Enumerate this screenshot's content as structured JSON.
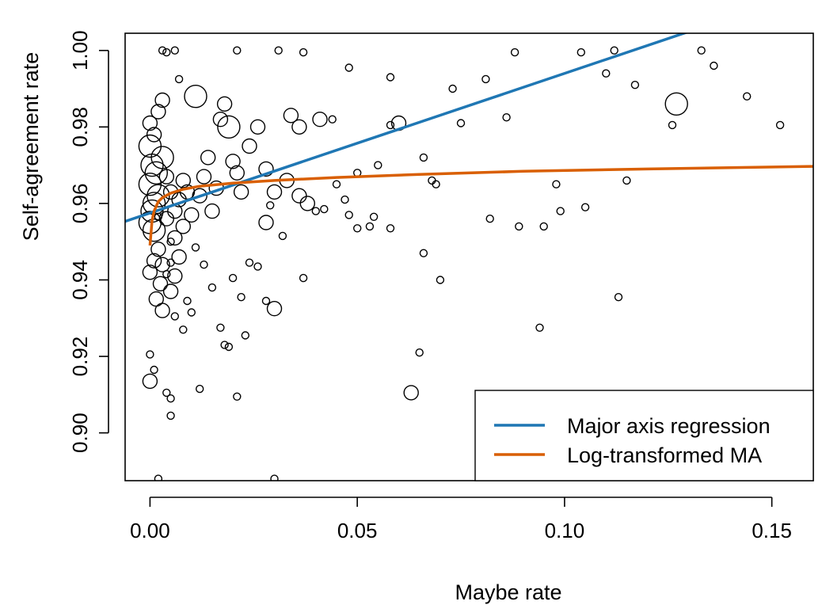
{
  "chart_data": {
    "type": "scatter",
    "title": "",
    "xlabel": "Maybe rate",
    "ylabel": "Self-agreement rate",
    "xlim": [
      -0.006,
      0.16
    ],
    "ylim": [
      0.8875,
      1.0045
    ],
    "x_ticks": [
      0.0,
      0.05,
      0.1,
      0.15
    ],
    "x_tick_labels": [
      "0.00",
      "0.05",
      "0.10",
      "0.15"
    ],
    "y_ticks": [
      0.9,
      0.92,
      0.94,
      0.96,
      0.98,
      1.0
    ],
    "y_tick_labels": [
      "0.90",
      "0.92",
      "0.94",
      "0.96",
      "0.98",
      "1.00"
    ],
    "grid": false,
    "legend_position": "bottom-right",
    "colors": {
      "major_axis": "#1f77b4",
      "log_ma": "#d95f02",
      "points": "#000000"
    },
    "lines": [
      {
        "name": "Major axis regression",
        "kind": "linear",
        "intercept": 0.9575,
        "slope": 0.365
      },
      {
        "name": "Log-transformed MA",
        "kind": "log",
        "points": [
          [
            0.0,
            0.949
          ],
          [
            0.0005,
            0.9555
          ],
          [
            0.001,
            0.958
          ],
          [
            0.002,
            0.9605
          ],
          [
            0.003,
            0.9615
          ],
          [
            0.005,
            0.9627
          ],
          [
            0.008,
            0.9637
          ],
          [
            0.012,
            0.9645
          ],
          [
            0.02,
            0.9653
          ],
          [
            0.03,
            0.966
          ],
          [
            0.045,
            0.9668
          ],
          [
            0.065,
            0.9676
          ],
          [
            0.09,
            0.9684
          ],
          [
            0.12,
            0.969
          ],
          [
            0.16,
            0.9697
          ]
        ]
      }
    ],
    "points_note_format": "[x, y, size]",
    "points": [
      [
        0.0,
        0.975,
        3
      ],
      [
        0.0005,
        0.97,
        3
      ],
      [
        0.0,
        0.965,
        3
      ],
      [
        0.001,
        0.96,
        3
      ],
      [
        0.0005,
        0.958,
        3
      ],
      [
        0.0,
        0.955,
        3
      ],
      [
        0.001,
        0.953,
        3
      ],
      [
        0.002,
        0.962,
        3
      ],
      [
        0.0015,
        0.968,
        3
      ],
      [
        0.003,
        0.972,
        3
      ],
      [
        0.0,
        0.981,
        2
      ],
      [
        0.001,
        0.978,
        2
      ],
      [
        0.002,
        0.984,
        2
      ],
      [
        0.003,
        0.987,
        2
      ],
      [
        0.004,
        0.956,
        2
      ],
      [
        0.005,
        0.963,
        2
      ],
      [
        0.006,
        0.958,
        2
      ],
      [
        0.004,
        0.967,
        2
      ],
      [
        0.007,
        0.961,
        2
      ],
      [
        0.008,
        0.966,
        2
      ],
      [
        0.0,
        0.9135,
        2
      ],
      [
        0.0,
        0.942,
        2
      ],
      [
        0.001,
        0.945,
        2
      ],
      [
        0.002,
        0.948,
        2
      ],
      [
        0.003,
        0.944,
        2
      ],
      [
        0.0025,
        0.939,
        2
      ],
      [
        0.0015,
        0.935,
        2
      ],
      [
        0.003,
        0.932,
        2
      ],
      [
        0.005,
        0.937,
        2
      ],
      [
        0.006,
        0.941,
        2
      ],
      [
        0.007,
        0.946,
        2
      ],
      [
        0.006,
        0.951,
        2
      ],
      [
        0.008,
        0.954,
        2
      ],
      [
        0.009,
        0.963,
        2
      ],
      [
        0.01,
        0.957,
        2
      ],
      [
        0.011,
        0.988,
        3
      ],
      [
        0.012,
        0.962,
        2
      ],
      [
        0.013,
        0.967,
        2
      ],
      [
        0.014,
        0.972,
        2
      ],
      [
        0.015,
        0.958,
        2
      ],
      [
        0.016,
        0.964,
        2
      ],
      [
        0.017,
        0.982,
        2
      ],
      [
        0.018,
        0.986,
        2
      ],
      [
        0.019,
        0.98,
        3
      ],
      [
        0.02,
        0.971,
        2
      ],
      [
        0.021,
        0.968,
        2
      ],
      [
        0.022,
        0.963,
        2
      ],
      [
        0.024,
        0.975,
        2
      ],
      [
        0.026,
        0.98,
        2
      ],
      [
        0.028,
        0.969,
        2
      ],
      [
        0.03,
        0.963,
        2
      ],
      [
        0.03,
        0.9325,
        2
      ],
      [
        0.028,
        0.955,
        2
      ],
      [
        0.033,
        0.966,
        2
      ],
      [
        0.036,
        0.962,
        2
      ],
      [
        0.038,
        0.96,
        2
      ],
      [
        0.034,
        0.983,
        2
      ],
      [
        0.036,
        0.98,
        2
      ],
      [
        0.041,
        0.982,
        2
      ],
      [
        0.044,
        0.982,
        1
      ],
      [
        0.045,
        0.965,
        1
      ],
      [
        0.047,
        0.961,
        1
      ],
      [
        0.05,
        0.968,
        1
      ],
      [
        0.053,
        0.954,
        1
      ],
      [
        0.055,
        0.97,
        1
      ],
      [
        0.058,
        0.9805,
        1
      ],
      [
        0.06,
        0.981,
        2
      ],
      [
        0.066,
        0.972,
        1
      ],
      [
        0.068,
        0.966,
        1
      ],
      [
        0.069,
        0.965,
        1
      ],
      [
        0.063,
        0.9105,
        2
      ],
      [
        0.07,
        0.94,
        1
      ],
      [
        0.073,
        0.99,
        1
      ],
      [
        0.075,
        0.981,
        1
      ],
      [
        0.082,
        0.956,
        1
      ],
      [
        0.089,
        0.954,
        1
      ],
      [
        0.095,
        0.954,
        1
      ],
      [
        0.099,
        0.958,
        1
      ],
      [
        0.105,
        0.959,
        1
      ],
      [
        0.11,
        0.994,
        1
      ],
      [
        0.115,
        0.966,
        1
      ],
      [
        0.117,
        0.991,
        1
      ],
      [
        0.127,
        0.986,
        3
      ],
      [
        0.136,
        0.996,
        1
      ],
      [
        0.144,
        0.988,
        1
      ],
      [
        0.094,
        0.9275,
        1
      ],
      [
        0.113,
        0.9355,
        1
      ],
      [
        0.065,
        0.921,
        1
      ],
      [
        0.066,
        0.947,
        1
      ],
      [
        0.002,
        0.888,
        1
      ],
      [
        0.03,
        0.888,
        1
      ],
      [
        0.0,
        0.9205,
        1
      ],
      [
        0.001,
        0.9165,
        1
      ],
      [
        0.004,
        0.9105,
        1
      ],
      [
        0.005,
        0.909,
        1
      ],
      [
        0.005,
        0.9045,
        1
      ],
      [
        0.012,
        0.9115,
        1
      ],
      [
        0.019,
        0.9225,
        1
      ],
      [
        0.018,
        0.923,
        1
      ],
      [
        0.017,
        0.9275,
        1
      ],
      [
        0.023,
        0.9255,
        1
      ],
      [
        0.021,
        0.9095,
        1
      ],
      [
        0.028,
        0.9345,
        1
      ],
      [
        0.029,
        0.9595,
        1
      ],
      [
        0.032,
        0.9515,
        1
      ],
      [
        0.037,
        0.9405,
        1
      ],
      [
        0.04,
        0.958,
        1
      ],
      [
        0.042,
        0.9585,
        1
      ],
      [
        0.048,
        0.957,
        1
      ],
      [
        0.05,
        0.9535,
        1
      ],
      [
        0.054,
        0.9565,
        1
      ],
      [
        0.058,
        0.9535,
        1
      ],
      [
        0.026,
        0.9435,
        1
      ],
      [
        0.024,
        0.9445,
        1
      ],
      [
        0.02,
        0.9405,
        1
      ],
      [
        0.022,
        0.9355,
        1
      ],
      [
        0.015,
        0.938,
        1
      ],
      [
        0.013,
        0.944,
        1
      ],
      [
        0.011,
        0.9485,
        1
      ],
      [
        0.009,
        0.9345,
        1
      ],
      [
        0.01,
        0.9315,
        1
      ],
      [
        0.008,
        0.927,
        1
      ],
      [
        0.006,
        0.9305,
        1
      ],
      [
        0.004,
        0.9415,
        1
      ],
      [
        0.005,
        0.9445,
        1
      ],
      [
        0.002,
        0.9565,
        1
      ],
      [
        0.005,
        0.95,
        1
      ],
      [
        0.007,
        0.9925,
        1
      ],
      [
        0.006,
        1.0,
        1
      ],
      [
        0.003,
        1.0,
        1
      ],
      [
        0.004,
        0.9995,
        1
      ],
      [
        0.021,
        1.0,
        1
      ],
      [
        0.031,
        1.0,
        1
      ],
      [
        0.037,
        0.9995,
        1
      ],
      [
        0.048,
        0.9955,
        1
      ],
      [
        0.058,
        0.993,
        1
      ],
      [
        0.088,
        0.9995,
        1
      ],
      [
        0.104,
        0.9995,
        1
      ],
      [
        0.112,
        1.0,
        1
      ],
      [
        0.133,
        1.0,
        1
      ],
      [
        0.152,
        0.9805,
        1
      ],
      [
        0.126,
        0.9805,
        1
      ],
      [
        0.098,
        0.965,
        1
      ],
      [
        0.086,
        0.9825,
        1
      ],
      [
        0.081,
        0.9925,
        1
      ]
    ]
  }
}
